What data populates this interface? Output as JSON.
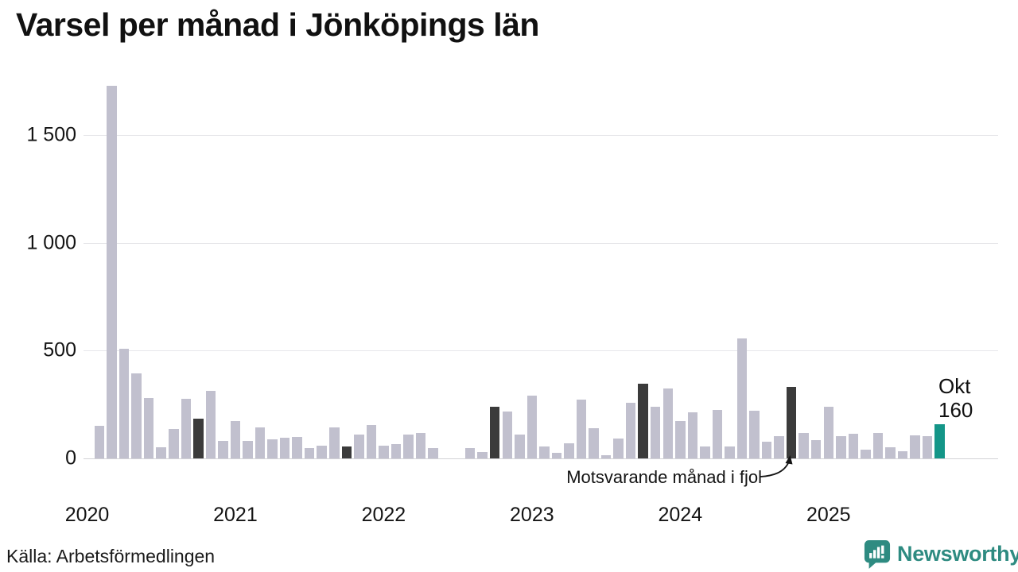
{
  "title": "Varsel per månad i Jönköpings län",
  "source": "Källa: Arbetsförmedlingen",
  "annotation": {
    "text": "Motsvarande månad i fjol"
  },
  "current_point_label": {
    "month": "Okt",
    "value": "160"
  },
  "branding": {
    "name": "Newsworthy",
    "logo_icon": "speech-bubble-bar-chart-icon"
  },
  "palette": {
    "bar": "#c1c0ce",
    "last_year_bar": "#3b3b3b",
    "current_bar": "#149688",
    "grid": "#e7e7ea",
    "zero_line": "#d2d2d6",
    "text": "#141414",
    "brand_teal": "#2e8b81"
  },
  "chart_data": {
    "type": "bar",
    "title": "Varsel per månad i Jönköpings län",
    "xlabel": "",
    "ylabel": "",
    "ylim": [
      0,
      1750
    ],
    "grid": true,
    "legend_position": "none",
    "yticks": [
      {
        "label": "0",
        "value": 0
      },
      {
        "label": "500",
        "value": 500
      },
      {
        "label": "1 000",
        "value": 1000
      },
      {
        "label": "1 500",
        "value": 1500
      }
    ],
    "xticks": [
      {
        "label": "2020",
        "month_index": 0
      },
      {
        "label": "2021",
        "month_index": 12
      },
      {
        "label": "2022",
        "month_index": 24
      },
      {
        "label": "2023",
        "month_index": 36
      },
      {
        "label": "2024",
        "month_index": 48
      },
      {
        "label": "2025",
        "month_index": 60
      }
    ],
    "highlight_legend": {
      "fjol": "Motsvarande månad i fjol",
      "current": "Okt 2025"
    },
    "months": [
      {
        "month": "2020-01",
        "value": 0,
        "highlight": "none"
      },
      {
        "month": "2020-02",
        "value": 150,
        "highlight": "none"
      },
      {
        "month": "2020-03",
        "value": 1730,
        "highlight": "none"
      },
      {
        "month": "2020-04",
        "value": 510,
        "highlight": "none"
      },
      {
        "month": "2020-05",
        "value": 395,
        "highlight": "none"
      },
      {
        "month": "2020-06",
        "value": 280,
        "highlight": "none"
      },
      {
        "month": "2020-07",
        "value": 50,
        "highlight": "none"
      },
      {
        "month": "2020-08",
        "value": 135,
        "highlight": "none"
      },
      {
        "month": "2020-09",
        "value": 275,
        "highlight": "none"
      },
      {
        "month": "2020-10",
        "value": 185,
        "highlight": "fjol"
      },
      {
        "month": "2020-11",
        "value": 315,
        "highlight": "none"
      },
      {
        "month": "2020-12",
        "value": 80,
        "highlight": "none"
      },
      {
        "month": "2021-01",
        "value": 175,
        "highlight": "none"
      },
      {
        "month": "2021-02",
        "value": 80,
        "highlight": "none"
      },
      {
        "month": "2021-03",
        "value": 145,
        "highlight": "none"
      },
      {
        "month": "2021-04",
        "value": 90,
        "highlight": "none"
      },
      {
        "month": "2021-05",
        "value": 95,
        "highlight": "none"
      },
      {
        "month": "2021-06",
        "value": 100,
        "highlight": "none"
      },
      {
        "month": "2021-07",
        "value": 47,
        "highlight": "none"
      },
      {
        "month": "2021-08",
        "value": 58,
        "highlight": "none"
      },
      {
        "month": "2021-09",
        "value": 143,
        "highlight": "none"
      },
      {
        "month": "2021-10",
        "value": 57,
        "highlight": "fjol"
      },
      {
        "month": "2021-11",
        "value": 110,
        "highlight": "none"
      },
      {
        "month": "2021-12",
        "value": 155,
        "highlight": "none"
      },
      {
        "month": "2022-01",
        "value": 58,
        "highlight": "none"
      },
      {
        "month": "2022-02",
        "value": 65,
        "highlight": "none"
      },
      {
        "month": "2022-03",
        "value": 110,
        "highlight": "none"
      },
      {
        "month": "2022-04",
        "value": 118,
        "highlight": "none"
      },
      {
        "month": "2022-05",
        "value": 47,
        "highlight": "none"
      },
      {
        "month": "2022-06",
        "value": 0,
        "highlight": "none"
      },
      {
        "month": "2022-07",
        "value": 0,
        "highlight": "none"
      },
      {
        "month": "2022-08",
        "value": 48,
        "highlight": "none"
      },
      {
        "month": "2022-09",
        "value": 30,
        "highlight": "none"
      },
      {
        "month": "2022-10",
        "value": 240,
        "highlight": "fjol"
      },
      {
        "month": "2022-11",
        "value": 216,
        "highlight": "none"
      },
      {
        "month": "2022-12",
        "value": 110,
        "highlight": "none"
      },
      {
        "month": "2023-01",
        "value": 290,
        "highlight": "none"
      },
      {
        "month": "2023-02",
        "value": 54,
        "highlight": "none"
      },
      {
        "month": "2023-03",
        "value": 26,
        "highlight": "none"
      },
      {
        "month": "2023-04",
        "value": 69,
        "highlight": "none"
      },
      {
        "month": "2023-05",
        "value": 272,
        "highlight": "none"
      },
      {
        "month": "2023-06",
        "value": 139,
        "highlight": "none"
      },
      {
        "month": "2023-07",
        "value": 16,
        "highlight": "none"
      },
      {
        "month": "2023-08",
        "value": 93,
        "highlight": "none"
      },
      {
        "month": "2023-09",
        "value": 257,
        "highlight": "none"
      },
      {
        "month": "2023-10",
        "value": 345,
        "highlight": "fjol"
      },
      {
        "month": "2023-11",
        "value": 240,
        "highlight": "none"
      },
      {
        "month": "2023-12",
        "value": 325,
        "highlight": "none"
      },
      {
        "month": "2024-01",
        "value": 173,
        "highlight": "none"
      },
      {
        "month": "2024-02",
        "value": 212,
        "highlight": "none"
      },
      {
        "month": "2024-03",
        "value": 55,
        "highlight": "none"
      },
      {
        "month": "2024-04",
        "value": 226,
        "highlight": "none"
      },
      {
        "month": "2024-05",
        "value": 56,
        "highlight": "none"
      },
      {
        "month": "2024-06",
        "value": 557,
        "highlight": "none"
      },
      {
        "month": "2024-07",
        "value": 222,
        "highlight": "none"
      },
      {
        "month": "2024-08",
        "value": 77,
        "highlight": "none"
      },
      {
        "month": "2024-09",
        "value": 105,
        "highlight": "none"
      },
      {
        "month": "2024-10",
        "value": 330,
        "highlight": "fjol"
      },
      {
        "month": "2024-11",
        "value": 117,
        "highlight": "none"
      },
      {
        "month": "2024-12",
        "value": 84,
        "highlight": "none"
      },
      {
        "month": "2025-01",
        "value": 239,
        "highlight": "none"
      },
      {
        "month": "2025-02",
        "value": 105,
        "highlight": "none"
      },
      {
        "month": "2025-03",
        "value": 113,
        "highlight": "none"
      },
      {
        "month": "2025-04",
        "value": 40,
        "highlight": "none"
      },
      {
        "month": "2025-05",
        "value": 118,
        "highlight": "none"
      },
      {
        "month": "2025-06",
        "value": 50,
        "highlight": "none"
      },
      {
        "month": "2025-07",
        "value": 32,
        "highlight": "none"
      },
      {
        "month": "2025-08",
        "value": 106,
        "highlight": "none"
      },
      {
        "month": "2025-09",
        "value": 105,
        "highlight": "none"
      },
      {
        "month": "2025-10",
        "value": 160,
        "highlight": "current"
      }
    ]
  }
}
